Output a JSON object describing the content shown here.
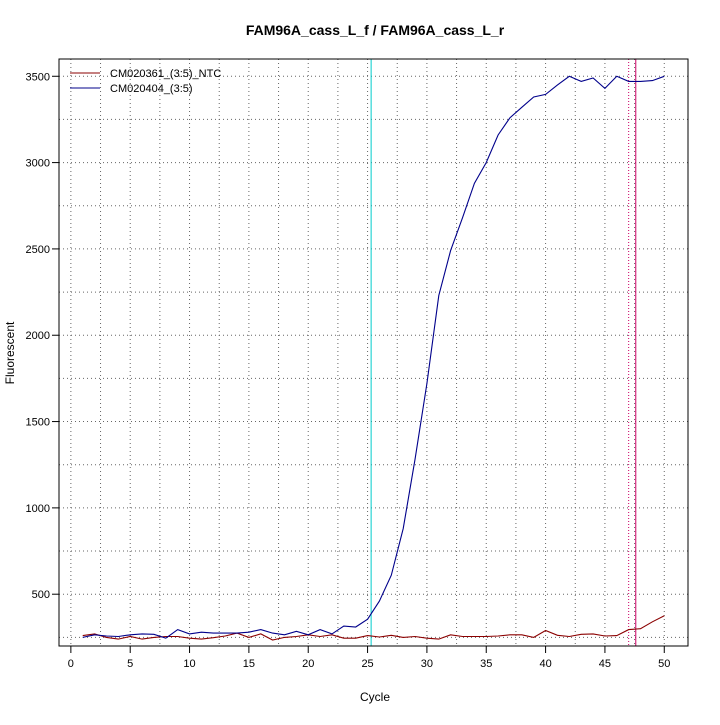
{
  "chart_data": {
    "type": "line",
    "title": "FAM96A_cass_L_f / FAM96A_cass_L_r",
    "xlabel": "Cycle",
    "ylabel": "Fluorescent",
    "xlim": [
      -1,
      52
    ],
    "ylim": [
      200,
      3600
    ],
    "x_ticks": [
      0,
      5,
      10,
      15,
      20,
      25,
      30,
      35,
      40,
      45,
      50
    ],
    "y_ticks": [
      500,
      1000,
      1500,
      2000,
      2500,
      3000,
      3500
    ],
    "x_tick_labels": [
      "0",
      "5",
      "10",
      "15",
      "20",
      "25",
      "30",
      "35",
      "40",
      "45",
      "50"
    ],
    "y_tick_labels": [
      "500",
      "1000",
      "1500",
      "2000",
      "2500",
      "3000",
      "3500"
    ],
    "grid": true,
    "legend_position": "top-left",
    "series": [
      {
        "name": "CM020361_(3:5)_NTC",
        "color": "#8b0000",
        "x": [
          1,
          2,
          3,
          4,
          5,
          6,
          7,
          8,
          9,
          10,
          11,
          12,
          13,
          14,
          15,
          16,
          17,
          18,
          19,
          20,
          21,
          22,
          23,
          24,
          25,
          26,
          27,
          28,
          29,
          30,
          31,
          32,
          33,
          34,
          35,
          36,
          37,
          38,
          39,
          40,
          41,
          42,
          43,
          44,
          45,
          46,
          47,
          48,
          49,
          50
        ],
        "values": [
          260,
          270,
          250,
          240,
          255,
          240,
          250,
          255,
          255,
          245,
          240,
          248,
          258,
          275,
          250,
          270,
          235,
          250,
          255,
          265,
          255,
          265,
          245,
          245,
          260,
          252,
          262,
          250,
          255,
          245,
          240,
          265,
          255,
          255,
          255,
          258,
          265,
          265,
          250,
          290,
          262,
          255,
          268,
          270,
          258,
          260,
          295,
          300,
          340,
          375
        ]
      },
      {
        "name": "CM020404_(3:5)",
        "color": "#00008b",
        "x": [
          1,
          2,
          3,
          4,
          5,
          6,
          7,
          8,
          9,
          10,
          11,
          12,
          13,
          14,
          15,
          16,
          17,
          18,
          19,
          20,
          21,
          22,
          23,
          24,
          25,
          26,
          27,
          28,
          29,
          30,
          31,
          32,
          33,
          34,
          35,
          36,
          37,
          38,
          39,
          40,
          41,
          42,
          43,
          44,
          45,
          46,
          47,
          48,
          49,
          50
        ],
        "values": [
          250,
          265,
          258,
          255,
          265,
          270,
          268,
          245,
          295,
          270,
          280,
          275,
          275,
          275,
          280,
          295,
          275,
          265,
          285,
          265,
          295,
          270,
          315,
          310,
          355,
          460,
          610,
          880,
          1280,
          1720,
          2230,
          2490,
          2680,
          2880,
          3000,
          3160,
          3260,
          3320,
          3380,
          3395,
          3450,
          3500,
          3470,
          3490,
          3430,
          3500,
          3470,
          3470,
          3475,
          3500
        ]
      }
    ],
    "vertical_lines": [
      {
        "x": 25.3,
        "color": "#00cccc",
        "style": "solid"
      },
      {
        "x": 47.0,
        "color": "#cc0066",
        "style": "dotted"
      },
      {
        "x": 47.6,
        "color": "#cc0066",
        "style": "solid"
      }
    ]
  }
}
